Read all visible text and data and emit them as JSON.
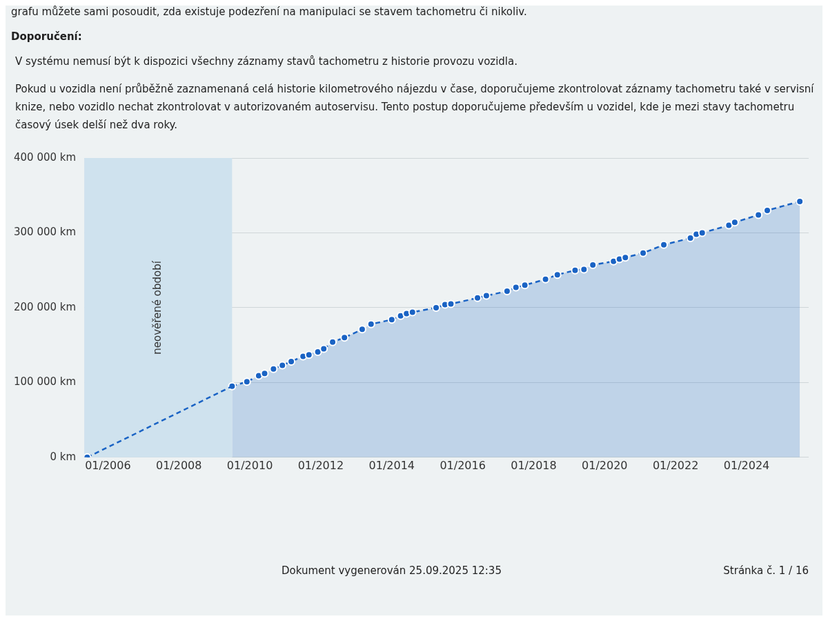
{
  "chart_data": {
    "type": "line",
    "title": "Doporučení:",
    "annotations": [
      "grafu můžete sami posoudit, zda existuje podezření na manipulaci se stavem tachometru či nikoliv.",
      "V systému nemusí být k dispozici všechny záznamy stavů tachometru z historie provozu vozidla.",
      "Pokud u vozidla není průběžně zaznamenaná celá historie kilometrového nájezdu v čase, doporučujeme zkontrolovat záznamy tachometru také v servisní knize, nebo vozidlo nechat zkontrolovat v autorizovaném autoservisu. Tento postup doporučujeme především u vozidel, kde je mezi stavy tachometru časový úsek delší než dva roky.",
      "Dokument vygenerován 25.09.2025 12:35",
      "Stránka č. 1 / 16"
    ],
    "series": [
      {
        "color": "#1a63c4",
        "x": [
          "2005-06",
          "2009-07"
        ],
        "values": [
          0,
          95000
        ]
      },
      {
        "type": "area",
        "color": "#1a63c4",
        "x": [
          "2009-07",
          "2009-12",
          "2010-04",
          "2010-06",
          "2010-09",
          "2010-12",
          "2011-03",
          "2011-07",
          "2011-09",
          "2011-12",
          "2012-02",
          "2012-05",
          "2012-09",
          "2013-03",
          "2013-06",
          "2014-01",
          "2014-04",
          "2014-06",
          "2014-08",
          "2015-04",
          "2015-07",
          "2015-09",
          "2016-06",
          "2016-09",
          "2017-04",
          "2017-07",
          "2017-10",
          "2018-05",
          "2018-09",
          "2019-03",
          "2019-06",
          "2019-09",
          "2020-04",
          "2020-06",
          "2020-08",
          "2021-02",
          "2021-09",
          "2022-06",
          "2022-08",
          "2022-10",
          "2023-07",
          "2023-09",
          "2024-05",
          "2024-08",
          "2025-07"
        ],
        "values": [
          95000,
          101000,
          109000,
          112000,
          118000,
          123000,
          128000,
          135000,
          137000,
          141000,
          145000,
          154000,
          160000,
          171000,
          178000,
          184000,
          189000,
          192000,
          194000,
          200000,
          204000,
          205000,
          213000,
          216000,
          222000,
          227000,
          230000,
          238000,
          244000,
          250000,
          251000,
          257000,
          262000,
          265000,
          267000,
          273000,
          284000,
          293000,
          298000,
          300000,
          310000,
          314000,
          324000,
          330000,
          342000
        ]
      }
    ],
    "xlim": [
      "2005-05",
      "2025-10"
    ],
    "xticks": [
      {
        "value": "2006-01",
        "label": "01/2006"
      },
      {
        "value": "2008-01",
        "label": "01/2008"
      },
      {
        "value": "2010-01",
        "label": "01/2010"
      },
      {
        "value": "2012-01",
        "label": "01/2012"
      },
      {
        "value": "2014-01",
        "label": "01/2014"
      },
      {
        "value": "2016-01",
        "label": "01/2016"
      },
      {
        "value": "2018-01",
        "label": "01/2018"
      },
      {
        "value": "2020-01",
        "label": "01/2020"
      },
      {
        "value": "2022-01",
        "label": "01/2022"
      },
      {
        "value": "2024-01",
        "label": "01/2024"
      }
    ],
    "ylim": [
      0,
      400000
    ],
    "yticks": [
      {
        "value": 0,
        "label": "0 km"
      },
      {
        "value": 100000,
        "label": "100 000 km"
      },
      {
        "value": 200000,
        "label": "200 000 km"
      },
      {
        "value": 300000,
        "label": "300 000 km"
      },
      {
        "value": 400000,
        "label": "400 000 km"
      }
    ],
    "bands": [
      {
        "axis": "x",
        "from": "2005-05",
        "to": "2009-07",
        "label": "neověřené období",
        "color": "#cfe2ee"
      }
    ],
    "grid": "y",
    "legend": false,
    "marker": "circle",
    "line_style": "dashed"
  }
}
